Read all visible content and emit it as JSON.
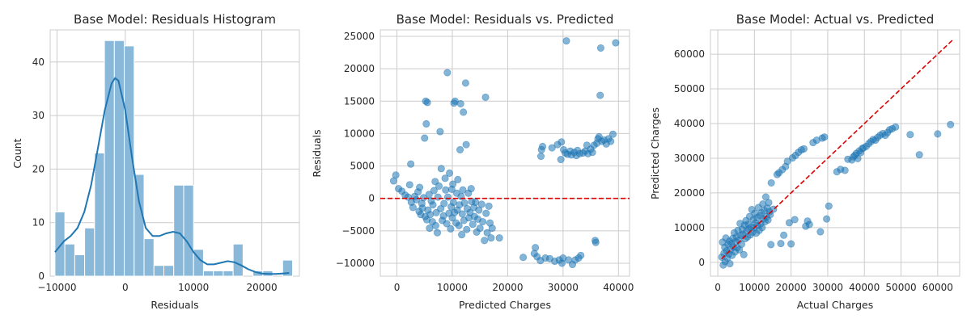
{
  "colors": {
    "blue": "#1f77b4",
    "bar_fill": "#8ab8d9",
    "red": "#dd0000",
    "grid": "#cccccc"
  },
  "chart_data": [
    {
      "type": "bar",
      "title": "Base Model: Residuals Histogram",
      "xlabel": "Residuals",
      "ylabel": "Count",
      "xlim": [
        -11000,
        25500
      ],
      "ylim": [
        0,
        46
      ],
      "xticks": [
        -10000,
        0,
        10000,
        20000
      ],
      "yticks": [
        0,
        10,
        20,
        30,
        40
      ],
      "grid": true,
      "bin_edges": [
        -10300,
        -8850,
        -7400,
        -5950,
        -4500,
        -3050,
        -1600,
        -150,
        1300,
        2750,
        4200,
        5650,
        7100,
        8550,
        10000,
        11450,
        12900,
        14350,
        15800,
        17250,
        18700,
        20150,
        21600,
        23050,
        24500
      ],
      "counts": [
        12,
        6,
        4,
        9,
        23,
        44,
        44,
        43,
        19,
        7,
        2,
        2,
        17,
        17,
        5,
        1,
        1,
        1,
        6,
        0,
        1,
        1,
        0,
        3
      ],
      "kde": {
        "x": [
          -10300,
          -9000,
          -8000,
          -7000,
          -6000,
          -5000,
          -4000,
          -3000,
          -2000,
          -1500,
          -1000,
          0,
          1000,
          2000,
          3000,
          4000,
          5000,
          6000,
          7000,
          8000,
          9000,
          10000,
          11000,
          12000,
          13000,
          14000,
          15000,
          16000,
          17000,
          18000,
          19000,
          20000,
          21000,
          22000,
          23000,
          24000
        ],
        "y": [
          4.5,
          6.5,
          7.5,
          9,
          12,
          17,
          24,
          31,
          36,
          37,
          36.5,
          31,
          22,
          14,
          9,
          7.5,
          7.5,
          8,
          8.3,
          8,
          6.5,
          4.5,
          3,
          2.2,
          2.2,
          2.5,
          2.8,
          2.6,
          2,
          1.3,
          0.8,
          0.5,
          0.4,
          0.4,
          0.5,
          0.6
        ]
      }
    },
    {
      "type": "scatter",
      "title": "Base Model: Residuals vs. Predicted",
      "xlabel": "Predicted Charges",
      "ylabel": "Residuals",
      "xlim": [
        -3000,
        42000
      ],
      "ylim": [
        -12000,
        26000
      ],
      "xticks": [
        0,
        10000,
        20000,
        30000,
        40000
      ],
      "yticks": [
        -10000,
        -5000,
        0,
        5000,
        10000,
        15000,
        20000,
        25000
      ],
      "grid": true,
      "hline": 0,
      "points": [
        [
          -600,
          2700
        ],
        [
          -200,
          3600
        ],
        [
          300,
          1500
        ],
        [
          900,
          1100
        ],
        [
          1500,
          500
        ],
        [
          2000,
          200
        ],
        [
          2300,
          2100
        ],
        [
          2500,
          5300
        ],
        [
          2600,
          -600
        ],
        [
          2900,
          -1400
        ],
        [
          3200,
          300
        ],
        [
          3500,
          -200
        ],
        [
          3800,
          1000
        ],
        [
          4000,
          -2000
        ],
        [
          4100,
          1700
        ],
        [
          4300,
          -2500
        ],
        [
          4500,
          -800
        ],
        [
          4600,
          -1500
        ],
        [
          4800,
          100
        ],
        [
          5000,
          9300
        ],
        [
          5100,
          -2800
        ],
        [
          5200,
          15000
        ],
        [
          5300,
          11500
        ],
        [
          5400,
          -3300
        ],
        [
          5500,
          14800
        ],
        [
          5600,
          -1800
        ],
        [
          5800,
          600
        ],
        [
          5900,
          -4600
        ],
        [
          6000,
          -2500
        ],
        [
          6200,
          -400
        ],
        [
          6400,
          -3600
        ],
        [
          6500,
          -1000
        ],
        [
          6700,
          1200
        ],
        [
          6900,
          2600
        ],
        [
          7000,
          -4200
        ],
        [
          7100,
          -2200
        ],
        [
          7300,
          -5300
        ],
        [
          7400,
          200
        ],
        [
          7600,
          1900
        ],
        [
          7800,
          10300
        ],
        [
          7900,
          -1600
        ],
        [
          8000,
          4600
        ],
        [
          8200,
          -3400
        ],
        [
          8400,
          -2700
        ],
        [
          8500,
          -800
        ],
        [
          8700,
          3100
        ],
        [
          8800,
          1300
        ],
        [
          9000,
          -3900
        ],
        [
          9100,
          19400
        ],
        [
          9200,
          200
        ],
        [
          9400,
          -2300
        ],
        [
          9500,
          3900
        ],
        [
          9700,
          -4700
        ],
        [
          9800,
          -1300
        ],
        [
          9900,
          1400
        ],
        [
          10000,
          -3000
        ],
        [
          10100,
          2200
        ],
        [
          10200,
          -600
        ],
        [
          10300,
          14700
        ],
        [
          10400,
          -2200
        ],
        [
          10500,
          15000
        ],
        [
          10700,
          -3800
        ],
        [
          10800,
          800
        ],
        [
          10900,
          -1800
        ],
        [
          11000,
          2900
        ],
        [
          11200,
          -4200
        ],
        [
          11300,
          -1000
        ],
        [
          11400,
          7500
        ],
        [
          11500,
          14600
        ],
        [
          11600,
          300
        ],
        [
          11700,
          -5600
        ],
        [
          11800,
          -2400
        ],
        [
          11900,
          1300
        ],
        [
          12000,
          13300
        ],
        [
          12100,
          -3400
        ],
        [
          12200,
          -700
        ],
        [
          12400,
          17800
        ],
        [
          12500,
          8300
        ],
        [
          12600,
          -4800
        ],
        [
          12700,
          -1600
        ],
        [
          12900,
          800
        ],
        [
          13000,
          -3000
        ],
        [
          13200,
          -2200
        ],
        [
          13400,
          1500
        ],
        [
          13500,
          -500
        ],
        [
          13700,
          -4000
        ],
        [
          13900,
          -1400
        ],
        [
          14000,
          -2800
        ],
        [
          14200,
          -600
        ],
        [
          14400,
          -5200
        ],
        [
          14600,
          -3200
        ],
        [
          14800,
          -1800
        ],
        [
          15000,
          -4600
        ],
        [
          15300,
          -900
        ],
        [
          15500,
          -3600
        ],
        [
          15800,
          -6500
        ],
        [
          16000,
          15600
        ],
        [
          16100,
          -2300
        ],
        [
          16300,
          -5300
        ],
        [
          16600,
          -1200
        ],
        [
          16800,
          -3800
        ],
        [
          17000,
          -6100
        ],
        [
          17200,
          -4600
        ],
        [
          18500,
          -6100
        ],
        [
          22800,
          -9100
        ],
        [
          24800,
          -8500
        ],
        [
          25000,
          -7600
        ],
        [
          25300,
          -9000
        ],
        [
          25900,
          -9600
        ],
        [
          26000,
          6500
        ],
        [
          26100,
          7500
        ],
        [
          26300,
          8000
        ],
        [
          26800,
          -9200
        ],
        [
          27600,
          -9300
        ],
        [
          28000,
          7800
        ],
        [
          28500,
          -9700
        ],
        [
          29000,
          8300
        ],
        [
          29300,
          -9500
        ],
        [
          29600,
          6000
        ],
        [
          29700,
          8700
        ],
        [
          29800,
          -10000
        ],
        [
          30000,
          -9200
        ],
        [
          30100,
          7500
        ],
        [
          30400,
          7000
        ],
        [
          30600,
          24300
        ],
        [
          30800,
          6800
        ],
        [
          31000,
          -9500
        ],
        [
          31300,
          7300
        ],
        [
          31500,
          6700
        ],
        [
          31700,
          -10200
        ],
        [
          32000,
          7100
        ],
        [
          32200,
          -9500
        ],
        [
          32400,
          6600
        ],
        [
          32600,
          7400
        ],
        [
          32800,
          -9200
        ],
        [
          33000,
          6900
        ],
        [
          33200,
          -8800
        ],
        [
          33600,
          7000
        ],
        [
          34000,
          7300
        ],
        [
          34300,
          8200
        ],
        [
          34500,
          6900
        ],
        [
          35000,
          7600
        ],
        [
          35300,
          7100
        ],
        [
          35600,
          8200
        ],
        [
          35800,
          -6500
        ],
        [
          35900,
          -6800
        ],
        [
          36100,
          8500
        ],
        [
          36300,
          9200
        ],
        [
          36500,
          9500
        ],
        [
          36700,
          15900
        ],
        [
          36800,
          23200
        ],
        [
          37000,
          8800
        ],
        [
          37400,
          9000
        ],
        [
          37800,
          8400
        ],
        [
          38200,
          9200
        ],
        [
          38600,
          8800
        ],
        [
          39000,
          9900
        ],
        [
          39500,
          24000
        ]
      ]
    },
    {
      "type": "scatter",
      "title": "Base Model: Actual vs. Predicted",
      "xlabel": "Actual Charges",
      "ylabel": "Predicted Charges",
      "xlim": [
        -2000,
        66000
      ],
      "ylim": [
        -4000,
        67000
      ],
      "xticks": [
        0,
        10000,
        20000,
        30000,
        40000,
        50000,
        60000
      ],
      "yticks": [
        0,
        10000,
        20000,
        30000,
        40000,
        50000,
        60000
      ],
      "grid": true,
      "diagonal": [
        [
          1000,
          1000
        ],
        [
          64000,
          64000
        ]
      ],
      "points": [
        [
          1100,
          1500
        ],
        [
          1300,
          5800
        ],
        [
          1500,
          -800
        ],
        [
          1700,
          2600
        ],
        [
          1900,
          4300
        ],
        [
          2000,
          200
        ],
        [
          2200,
          7000
        ],
        [
          2400,
          3300
        ],
        [
          2600,
          1200
        ],
        [
          2800,
          5200
        ],
        [
          3000,
          2400
        ],
        [
          3200,
          6100
        ],
        [
          3300,
          -400
        ],
        [
          3500,
          3700
        ],
        [
          3700,
          5500
        ],
        [
          3900,
          2000
        ],
        [
          4100,
          6900
        ],
        [
          4300,
          4400
        ],
        [
          4500,
          8500
        ],
        [
          4700,
          3000
        ],
        [
          4900,
          5900
        ],
        [
          5100,
          7300
        ],
        [
          5300,
          4200
        ],
        [
          5500,
          9200
        ],
        [
          5700,
          6400
        ],
        [
          5900,
          3600
        ],
        [
          6100,
          11200
        ],
        [
          6300,
          7800
        ],
        [
          6500,
          5200
        ],
        [
          6700,
          9500
        ],
        [
          6900,
          8100
        ],
        [
          7100,
          2200
        ],
        [
          7300,
          10700
        ],
        [
          7500,
          6800
        ],
        [
          7700,
          12000
        ],
        [
          7900,
          9000
        ],
        [
          8100,
          7300
        ],
        [
          8300,
          11000
        ],
        [
          8500,
          9600
        ],
        [
          8700,
          13200
        ],
        [
          8900,
          7900
        ],
        [
          9100,
          10200
        ],
        [
          9300,
          15200
        ],
        [
          9500,
          8700
        ],
        [
          9700,
          12300
        ],
        [
          9900,
          9900
        ],
        [
          10100,
          14100
        ],
        [
          10300,
          11300
        ],
        [
          10500,
          8400
        ],
        [
          10700,
          12900
        ],
        [
          10900,
          10600
        ],
        [
          11100,
          15800
        ],
        [
          11300,
          9200
        ],
        [
          11500,
          13400
        ],
        [
          11700,
          11100
        ],
        [
          11900,
          14300
        ],
        [
          12100,
          10000
        ],
        [
          12300,
          16800
        ],
        [
          12500,
          12500
        ],
        [
          12700,
          14900
        ],
        [
          12900,
          11700
        ],
        [
          13100,
          18800
        ],
        [
          13300,
          13100
        ],
        [
          13500,
          15600
        ],
        [
          13700,
          12200
        ],
        [
          13900,
          17200
        ],
        [
          14100,
          14600
        ],
        [
          14300,
          13700
        ],
        [
          14500,
          5100
        ],
        [
          14600,
          22900
        ],
        [
          15200,
          15300
        ],
        [
          16200,
          25300
        ],
        [
          16700,
          25800
        ],
        [
          17200,
          5400
        ],
        [
          17600,
          26700
        ],
        [
          18000,
          7800
        ],
        [
          18500,
          27600
        ],
        [
          19000,
          29100
        ],
        [
          19500,
          11400
        ],
        [
          20000,
          5300
        ],
        [
          20400,
          30100
        ],
        [
          21000,
          12300
        ],
        [
          21200,
          30800
        ],
        [
          22000,
          31700
        ],
        [
          22800,
          32400
        ],
        [
          23500,
          32700
        ],
        [
          24000,
          10400
        ],
        [
          24500,
          11900
        ],
        [
          25000,
          10900
        ],
        [
          26000,
          34500
        ],
        [
          27000,
          35200
        ],
        [
          28000,
          8800
        ],
        [
          28500,
          35800
        ],
        [
          29100,
          36100
        ],
        [
          29700,
          12500
        ],
        [
          30300,
          16200
        ],
        [
          32500,
          26100
        ],
        [
          33500,
          26800
        ],
        [
          34700,
          26500
        ],
        [
          35500,
          29700
        ],
        [
          36600,
          29500
        ],
        [
          37000,
          30400
        ],
        [
          37400,
          30800
        ],
        [
          37800,
          31400
        ],
        [
          38200,
          29900
        ],
        [
          38600,
          32100
        ],
        [
          39000,
          31600
        ],
        [
          39400,
          32800
        ],
        [
          39800,
          33000
        ],
        [
          40500,
          33400
        ],
        [
          41200,
          34200
        ],
        [
          41800,
          34800
        ],
        [
          42400,
          35400
        ],
        [
          43000,
          35200
        ],
        [
          43600,
          36000
        ],
        [
          44300,
          36600
        ],
        [
          45000,
          37100
        ],
        [
          45700,
          36600
        ],
        [
          46300,
          37400
        ],
        [
          46900,
          38200
        ],
        [
          47600,
          38500
        ],
        [
          48500,
          39000
        ],
        [
          52500,
          36800
        ],
        [
          55000,
          31000
        ],
        [
          60000,
          37000
        ],
        [
          63500,
          39700
        ]
      ]
    }
  ]
}
